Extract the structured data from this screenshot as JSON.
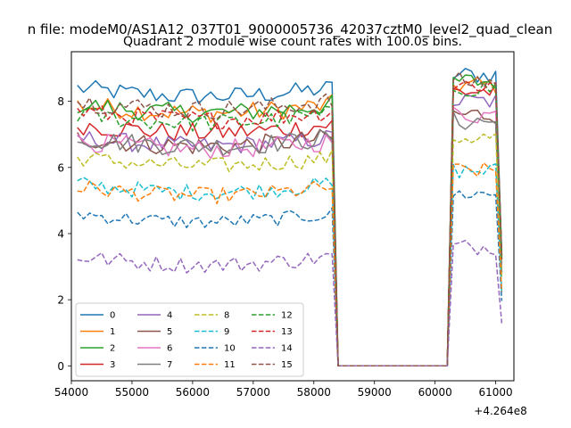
{
  "figure": {
    "suptitle": "n file: modeM0/AS1A12_037T01_9000005736_42037cztM0_level2_quad_clean"
  },
  "chart_data": {
    "type": "line",
    "title": "Quadrant 2 module wise count rates with 100.0s bins.",
    "xlabel": "",
    "ylabel": "",
    "x_offset_label": "+4.264e8",
    "xlim": [
      54000,
      61300
    ],
    "ylim": [
      -0.45,
      9.5
    ],
    "x_ticks": [
      54000,
      55000,
      56000,
      57000,
      58000,
      59000,
      60000,
      61000
    ],
    "y_ticks": [
      0,
      2,
      4,
      6,
      8
    ],
    "x_tick_labels": [
      "54000",
      "55000",
      "56000",
      "57000",
      "58000",
      "59000",
      "60000",
      "61000"
    ],
    "y_tick_labels": [
      "0",
      "2",
      "4",
      "6",
      "8"
    ],
    "legend": {
      "position": "lower-left",
      "columns": 4
    },
    "segments": {
      "seg1": {
        "start": 54100,
        "end": 58300,
        "step": 100
      },
      "gap": {
        "x": [
          58400,
          58600,
          60200
        ],
        "y": [
          0,
          0,
          0
        ]
      },
      "seg2": {
        "start": 60300,
        "end": 61100,
        "step": 100
      }
    },
    "series": [
      {
        "name": "0",
        "color": "#1f77b4",
        "dashed": false,
        "mean1": 8.4,
        "mean2": 8.8,
        "noise": 0.28
      },
      {
        "name": "1",
        "color": "#ff7f0e",
        "dashed": false,
        "mean1": 7.9,
        "mean2": 8.5,
        "noise": 0.3
      },
      {
        "name": "2",
        "color": "#2ca02c",
        "dashed": false,
        "mean1": 7.9,
        "mean2": 8.6,
        "noise": 0.3
      },
      {
        "name": "3",
        "color": "#d62728",
        "dashed": false,
        "mean1": 7.3,
        "mean2": 8.3,
        "noise": 0.3
      },
      {
        "name": "4",
        "color": "#9467bd",
        "dashed": false,
        "mean1": 6.9,
        "mean2": 8.0,
        "noise": 0.28
      },
      {
        "name": "5",
        "color": "#8c564b",
        "dashed": false,
        "mean1": 6.9,
        "mean2": 7.6,
        "noise": 0.3
      },
      {
        "name": "6",
        "color": "#e377c2",
        "dashed": false,
        "mean1": 6.8,
        "mean2": 7.6,
        "noise": 0.3
      },
      {
        "name": "7",
        "color": "#7f7f7f",
        "dashed": false,
        "mean1": 6.9,
        "mean2": 7.4,
        "noise": 0.3
      },
      {
        "name": "8",
        "color": "#bcbd22",
        "dashed": true,
        "mean1": 6.3,
        "mean2": 6.9,
        "noise": 0.25
      },
      {
        "name": "9",
        "color": "#17becf",
        "dashed": true,
        "mean1": 5.5,
        "mean2": 5.9,
        "noise": 0.25
      },
      {
        "name": "10",
        "color": "#1f77b4",
        "dashed": true,
        "mean1": 4.6,
        "mean2": 5.2,
        "noise": 0.22
      },
      {
        "name": "11",
        "color": "#ff7f0e",
        "dashed": true,
        "mean1": 5.4,
        "mean2": 5.9,
        "noise": 0.25
      },
      {
        "name": "12",
        "color": "#2ca02c",
        "dashed": true,
        "mean1": 7.6,
        "mean2": 8.4,
        "noise": 0.28
      },
      {
        "name": "13",
        "color": "#d62728",
        "dashed": true,
        "mean1": 7.7,
        "mean2": 8.5,
        "noise": 0.28
      },
      {
        "name": "14",
        "color": "#9467bd",
        "dashed": true,
        "mean1": 3.3,
        "mean2": 3.6,
        "noise": 0.25
      },
      {
        "name": "15",
        "color": "#8c564b",
        "dashed": true,
        "mean1": 8.0,
        "mean2": 8.6,
        "noise": 0.3
      }
    ]
  }
}
